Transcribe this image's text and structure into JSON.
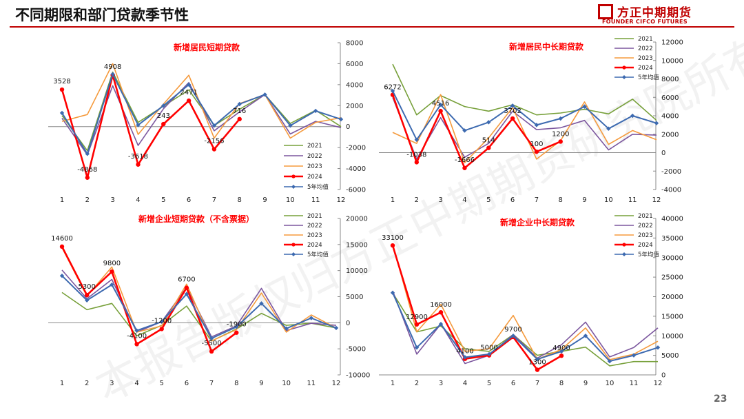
{
  "header": {
    "title": "不同期限和部门贷款季节性",
    "logo_cn": "方正中期期货",
    "logo_en": "FOUNDER CIFCO FUTURES",
    "page_number": "23"
  },
  "watermark": "本报告版权归方正中期期货研究院所有",
  "colors": {
    "2021": "#77a03a",
    "2022": "#7b569e",
    "2023": "#f59a3c",
    "2024": "#ff0000",
    "avg": "#3d6ab0"
  },
  "chart_data": [
    {
      "type": "line",
      "title": "新增居民短期贷款",
      "x": [
        "1",
        "2",
        "3",
        "4",
        "5",
        "6",
        "7",
        "8",
        "9",
        "10",
        "11",
        "12"
      ],
      "ylim": [
        -6000,
        8000
      ],
      "yticks": [
        -6000,
        -4000,
        -2000,
        0,
        2000,
        4000,
        6000,
        8000
      ],
      "ytick_labels": [
        "-6000",
        "-4000",
        "-2000",
        "0",
        "2000",
        "4000",
        "6000",
        "8000"
      ],
      "legend": "right",
      "series": [
        {
          "name": "2021",
          "color": "#77a03a",
          "values": [
            1050,
            -2300,
            5200,
            400,
            1950,
            3500,
            100,
            1650,
            3050,
            300,
            1550,
            0
          ]
        },
        {
          "name": "2022",
          "color": "#7b569e",
          "values": [
            800,
            -2700,
            3900,
            -1800,
            1700,
            4200,
            -400,
            1400,
            3050,
            -700,
            500,
            -100
          ]
        },
        {
          "name": "2023",
          "color": "#f59a3c",
          "values": [
            500,
            1150,
            6000,
            -750,
            2150,
            4900,
            -1100,
            2200,
            3050,
            -1100,
            400,
            850
          ]
        },
        {
          "name": "2024",
          "color": "#ff0000",
          "values": [
            3528,
            -4868,
            4908,
            -3618,
            243,
            2471,
            -2156,
            716
          ]
        },
        {
          "name": "5年均值",
          "color": "#3d6ab0",
          "values": [
            1300,
            -2600,
            5000,
            150,
            2000,
            4000,
            100,
            2150,
            3050,
            100,
            1500,
            700
          ]
        }
      ],
      "labels": [
        {
          "i": 0,
          "text": "3528",
          "pos": "above"
        },
        {
          "i": 1,
          "text": "-4868",
          "pos": "above"
        },
        {
          "i": 2,
          "text": "4908",
          "pos": "above"
        },
        {
          "i": 3,
          "text": "-3618",
          "pos": "above"
        },
        {
          "i": 4,
          "text": "243",
          "pos": "above"
        },
        {
          "i": 5,
          "text": "2471",
          "pos": "above"
        },
        {
          "i": 6,
          "text": "-2156",
          "pos": "above"
        },
        {
          "i": 7,
          "text": "716",
          "pos": "above"
        }
      ]
    },
    {
      "type": "line",
      "title": "新增居民中长期贷款",
      "x": [
        "1",
        "2",
        "3",
        "4",
        "5",
        "6",
        "7",
        "8",
        "9",
        "10",
        "11",
        "12"
      ],
      "ylim": [
        -4000,
        12000
      ],
      "yticks": [
        -4000,
        -2000,
        0,
        2000,
        4000,
        6000,
        8000,
        10000,
        12000
      ],
      "ytick_labels": [
        "-4000",
        "-2000",
        "0",
        "2000",
        "4000",
        "6000",
        "8000",
        "10000",
        "12000"
      ],
      "legend": "top-right",
      "series": [
        {
          "name": "2021",
          "color": "#77a03a",
          "values": [
            9600,
            4100,
            6200,
            5000,
            4500,
            5200,
            4100,
            4300,
            4700,
            4200,
            5800,
            3500
          ]
        },
        {
          "name": "2022",
          "color": "#7b569e",
          "values": [
            6000,
            -700,
            3800,
            -500,
            1000,
            4500,
            2500,
            2700,
            3500,
            300,
            2000,
            1900
          ]
        },
        {
          "name": "2023",
          "color": "#f59a3c",
          "values": [
            2200,
            1000,
            6300,
            -1100,
            1600,
            4900,
            -700,
            1300,
            5500,
            900,
            2400,
            1400
          ]
        },
        {
          "name": "2024",
          "color": "#ff0000",
          "values": [
            6272,
            -1038,
            4516,
            -1666,
            514,
            3702,
            100,
            1200
          ]
        },
        {
          "name": "5年均值",
          "color": "#3d6ab0",
          "values": [
            6700,
            1400,
            5200,
            2400,
            3300,
            5100,
            3000,
            3700,
            5000,
            2600,
            4000,
            3200
          ]
        }
      ],
      "labels": [
        {
          "i": 0,
          "text": "6272",
          "pos": "above"
        },
        {
          "i": 1,
          "text": "-1038",
          "pos": "above"
        },
        {
          "i": 2,
          "text": "4516",
          "pos": "above"
        },
        {
          "i": 3,
          "text": "-1666",
          "pos": "above"
        },
        {
          "i": 4,
          "text": "514",
          "pos": "above"
        },
        {
          "i": 5,
          "text": "3702",
          "pos": "above"
        },
        {
          "i": 6,
          "text": "100",
          "pos": "above"
        },
        {
          "i": 7,
          "text": "1200",
          "pos": "above"
        }
      ]
    },
    {
      "type": "line",
      "title": "新增企业短期贷款（不含票据）",
      "x": [
        "1",
        "2",
        "3",
        "4",
        "5",
        "6",
        "7",
        "8",
        "9",
        "10",
        "11",
        "12"
      ],
      "ylim": [
        -10000,
        20000
      ],
      "yticks": [
        -10000,
        -5000,
        0,
        5000,
        10000,
        15000,
        20000
      ],
      "ytick_labels": [
        "-10000",
        "-5000",
        "0",
        "5000",
        "10000",
        "15000",
        "20000"
      ],
      "legend": "top-right",
      "series": [
        {
          "name": "2021",
          "color": "#77a03a",
          "values": [
            5800,
            2500,
            3700,
            -2500,
            -500,
            3200,
            -3500,
            -1200,
            1800,
            -500,
            -100,
            -1000
          ]
        },
        {
          "name": "2022",
          "color": "#7b569e",
          "values": [
            10100,
            4600,
            8300,
            -1800,
            200,
            6800,
            -2700,
            -600,
            6600,
            -1500,
            -100,
            -500
          ]
        },
        {
          "name": "2023",
          "color": "#f59a3c",
          "values": [
            14400,
            5100,
            10700,
            -1800,
            -600,
            7400,
            -3500,
            -1300,
            5700,
            -1800,
            1500,
            -1000
          ]
        },
        {
          "name": "2024",
          "color": "#ff0000",
          "values": [
            14600,
            5300,
            9800,
            -4100,
            -1200,
            6700,
            -5500,
            -1900
          ]
        },
        {
          "name": "5年均值",
          "color": "#3d6ab0",
          "values": [
            9000,
            4300,
            7300,
            -1500,
            200,
            5500,
            -3000,
            -800,
            3700,
            -1100,
            900,
            -1000
          ]
        }
      ],
      "labels": [
        {
          "i": 0,
          "text": "14600",
          "pos": "above"
        },
        {
          "i": 1,
          "text": "5300",
          "pos": "above"
        },
        {
          "i": 2,
          "text": "9800",
          "pos": "above"
        },
        {
          "i": 3,
          "text": "-4100",
          "pos": "above"
        },
        {
          "i": 4,
          "text": "-1200",
          "pos": "above"
        },
        {
          "i": 5,
          "text": "6700",
          "pos": "above"
        },
        {
          "i": 6,
          "text": "-5500",
          "pos": "above"
        },
        {
          "i": 7,
          "text": "-1900",
          "pos": "above"
        }
      ]
    },
    {
      "type": "line",
      "title": "新增企业中长期贷款",
      "x": [
        "1",
        "2",
        "3",
        "4",
        "5",
        "6",
        "7",
        "8",
        "9",
        "10",
        "11",
        "12"
      ],
      "ylim": [
        0,
        40000
      ],
      "yticks": [
        0,
        5000,
        10000,
        15000,
        20000,
        25000,
        30000,
        35000,
        40000
      ],
      "ytick_labels": [
        "0",
        "5000",
        "10000",
        "15000",
        "20000",
        "25000",
        "30000",
        "35000",
        "40000"
      ],
      "legend": "top-right",
      "series": [
        {
          "name": "2021",
          "color": "#77a03a",
          "values": [
            21000,
            11000,
            12500,
            6700,
            6000,
            10300,
            5000,
            6000,
            7100,
            2300,
            3400,
            3400
          ]
        },
        {
          "name": "2022",
          "color": "#7b569e",
          "values": [
            21500,
            5300,
            13000,
            2900,
            5000,
            10300,
            4300,
            7700,
            13500,
            4600,
            7000,
            12000
          ]
        },
        {
          "name": "2023",
          "color": "#f59a3c",
          "values": [
            33500,
            11000,
            18000,
            6000,
            6700,
            15200,
            4000,
            6500,
            12000,
            3900,
            5300,
            8600
          ]
        },
        {
          "name": "2024",
          "color": "#ff0000",
          "values": [
            33100,
            12900,
            16000,
            4100,
            5000,
            9700,
            1300,
            4900
          ]
        },
        {
          "name": "5年均值",
          "color": "#3d6ab0",
          "values": [
            21000,
            7000,
            13000,
            4500,
            5300,
            10000,
            4000,
            6000,
            10000,
            3500,
            5000,
            7000
          ]
        }
      ],
      "labels": [
        {
          "i": 0,
          "text": "33100",
          "pos": "above"
        },
        {
          "i": 1,
          "text": "12900",
          "pos": "above"
        },
        {
          "i": 2,
          "text": "16000",
          "pos": "above"
        },
        {
          "i": 3,
          "text": "4100",
          "pos": "above"
        },
        {
          "i": 4,
          "text": "5000",
          "pos": "above"
        },
        {
          "i": 5,
          "text": "9700",
          "pos": "above"
        },
        {
          "i": 6,
          "text": "1300",
          "pos": "above"
        },
        {
          "i": 7,
          "text": "4900",
          "pos": "above"
        }
      ]
    }
  ]
}
